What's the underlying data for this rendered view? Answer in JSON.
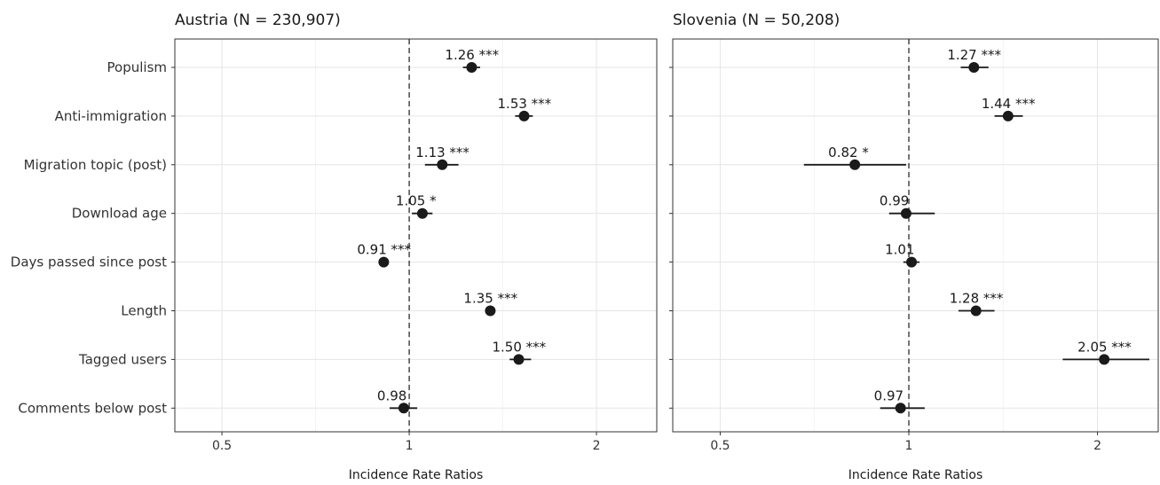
{
  "chart_data": {
    "type": "scatter",
    "variables": [
      "Populism",
      "Anti-immigration",
      "Migration topic (post)",
      "Download age",
      "Days passed since post",
      "Length",
      "Tagged users",
      "Comments below post"
    ],
    "xlabel": "Incidence Rate Ratios",
    "x_scale": "log",
    "xlim": [
      0.42,
      2.5
    ],
    "x_ticks": [
      0.5,
      1,
      2
    ],
    "x_tick_labels": [
      "0.5",
      "1",
      "2"
    ],
    "reference_line": 1,
    "panels": [
      {
        "title": "Austria (N = 230,907)",
        "points": [
          {
            "variable": "Populism",
            "irr": 1.26,
            "ci": [
              1.22,
              1.3
            ],
            "label": "1.26 ***"
          },
          {
            "variable": "Anti-immigration",
            "irr": 1.53,
            "ci": [
              1.48,
              1.58
            ],
            "label": "1.53 ***"
          },
          {
            "variable": "Migration topic (post)",
            "irr": 1.13,
            "ci": [
              1.06,
              1.2
            ],
            "label": "1.13 ***"
          },
          {
            "variable": "Download age",
            "irr": 1.05,
            "ci": [
              1.01,
              1.09
            ],
            "label": "1.05 *"
          },
          {
            "variable": "Days passed since post",
            "irr": 0.91,
            "ci": [
              0.9,
              0.92
            ],
            "label": "0.91 ***"
          },
          {
            "variable": "Length",
            "irr": 1.35,
            "ci": [
              1.33,
              1.37
            ],
            "label": "1.35 ***"
          },
          {
            "variable": "Tagged users",
            "irr": 1.5,
            "ci": [
              1.45,
              1.57
            ],
            "label": "1.50 ***"
          },
          {
            "variable": "Comments below post",
            "irr": 0.98,
            "ci": [
              0.93,
              1.03
            ],
            "label": "0.98"
          }
        ]
      },
      {
        "title": "Slovenia (N = 50,208)",
        "points": [
          {
            "variable": "Populism",
            "irr": 1.27,
            "ci": [
              1.21,
              1.34
            ],
            "label": "1.27 ***"
          },
          {
            "variable": "Anti-immigration",
            "irr": 1.44,
            "ci": [
              1.37,
              1.52
            ],
            "label": "1.44 ***"
          },
          {
            "variable": "Migration topic (post)",
            "irr": 0.82,
            "ci": [
              0.68,
              0.99
            ],
            "label": "0.82 *"
          },
          {
            "variable": "Download age",
            "irr": 0.99,
            "ci": [
              0.93,
              1.1
            ],
            "label": "0.99"
          },
          {
            "variable": "Days passed since post",
            "irr": 1.01,
            "ci": [
              0.98,
              1.04
            ],
            "label": "1.01"
          },
          {
            "variable": "Length",
            "irr": 1.28,
            "ci": [
              1.2,
              1.37
            ],
            "label": "1.28 ***"
          },
          {
            "variable": "Tagged users",
            "irr": 2.05,
            "ci": [
              1.76,
              2.42
            ],
            "label": "2.05 ***"
          },
          {
            "variable": "Comments below post",
            "irr": 0.97,
            "ci": [
              0.9,
              1.06
            ],
            "label": "0.97"
          }
        ]
      }
    ]
  }
}
